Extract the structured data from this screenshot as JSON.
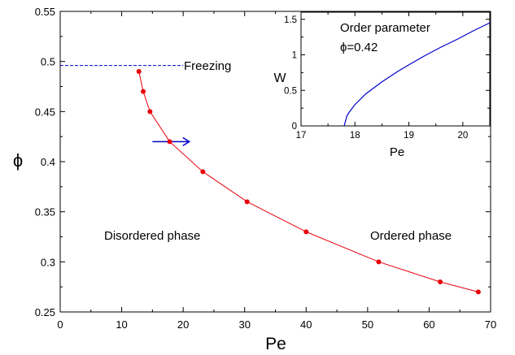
{
  "chart_data": [
    {
      "type": "line",
      "xlabel": "Pe",
      "ylabel": "ϕ",
      "xlim": [
        0,
        70
      ],
      "ylim": [
        0.25,
        0.55
      ],
      "x_ticks": [
        "0",
        "10",
        "20",
        "30",
        "40",
        "50",
        "60",
        "70"
      ],
      "y_ticks": [
        "0.25",
        "0.3",
        "0.35",
        "0.4",
        "0.45",
        "0.5",
        "0.55"
      ],
      "grid": false,
      "series": [
        {
          "color": "#e8000b",
          "marker": "circle",
          "x": [
            12.8,
            13.5,
            14.6,
            17.8,
            23.2,
            30.4,
            40.0,
            51.8,
            61.8,
            68.0
          ],
          "y": [
            0.49,
            0.47,
            0.45,
            0.42,
            0.39,
            0.36,
            0.33,
            0.3,
            0.28,
            0.27
          ]
        }
      ],
      "freezing_line": {
        "y": 0.496,
        "x_range": [
          0,
          20
        ],
        "color": "#0000cc",
        "style": "dashed"
      },
      "arrow": {
        "x_range": [
          15,
          21
        ],
        "y": 0.42,
        "color": "#0000cc"
      },
      "annotations": {
        "freezing": "Freezing",
        "disordered": "Disordered phase",
        "ordered": "Ordered phase"
      }
    },
    {
      "type": "line",
      "title": "Order parameter",
      "subtitle": "ϕ=0.42",
      "xlabel": "Pe",
      "ylabel": "W",
      "xlim": [
        17,
        20.5
      ],
      "ylim": [
        0,
        1.6
      ],
      "x_ticks": [
        "17",
        "18",
        "19",
        "20"
      ],
      "y_ticks": [
        "0",
        "0.5",
        "1",
        "1.5"
      ],
      "series": [
        {
          "color": "#0000cc",
          "x": [
            17.8,
            17.85,
            17.9,
            18.0,
            18.2,
            18.5,
            18.8,
            19.0,
            19.3,
            19.6,
            19.9,
            20.2,
            20.5
          ],
          "y": [
            0.0,
            0.14,
            0.2,
            0.3,
            0.45,
            0.62,
            0.77,
            0.86,
            0.99,
            1.11,
            1.22,
            1.34,
            1.45
          ]
        }
      ]
    }
  ]
}
